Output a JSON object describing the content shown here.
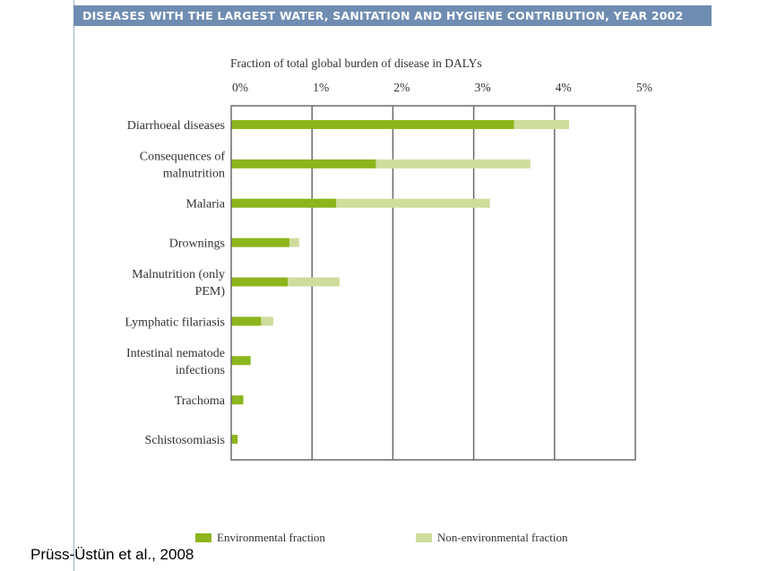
{
  "banner": {
    "title": "DISEASES WITH THE LARGEST WATER, SANITATION AND HYGIENE CONTRIBUTION, YEAR 2002"
  },
  "source": "Prüss-Üstün et al., 2008",
  "colors": {
    "environmental": "#8db51c",
    "non_environmental": "#cedd9b",
    "banner": "#6f8db2"
  },
  "chart_data": {
    "type": "bar",
    "orientation": "horizontal",
    "stacked": true,
    "title": "Fraction of total global burden of disease in DALYs",
    "xlim": [
      0,
      5
    ],
    "xticks": [
      "0%",
      "1%",
      "2%",
      "3%",
      "4%",
      "5%"
    ],
    "grid": true,
    "legend_placement": "bottom",
    "categories": [
      [
        "Diarrhoeal diseases"
      ],
      [
        "Consequences of",
        "malnutrition"
      ],
      [
        "Malaria"
      ],
      [
        "Drownings"
      ],
      [
        "Malnutrition (only",
        "PEM)"
      ],
      [
        "Lymphatic filariasis"
      ],
      [
        "Intestinal nematode",
        "infections"
      ],
      [
        "Trachoma"
      ],
      [
        "Schistosomiasis"
      ]
    ],
    "series": [
      {
        "name": "Environmental fraction",
        "values": [
          3.5,
          1.79,
          1.3,
          0.72,
          0.7,
          0.37,
          0.24,
          0.15,
          0.08
        ]
      },
      {
        "name": "Non-environmental fraction",
        "values": [
          0.68,
          1.91,
          1.9,
          0.12,
          0.64,
          0.15,
          0,
          0,
          0
        ]
      }
    ]
  }
}
